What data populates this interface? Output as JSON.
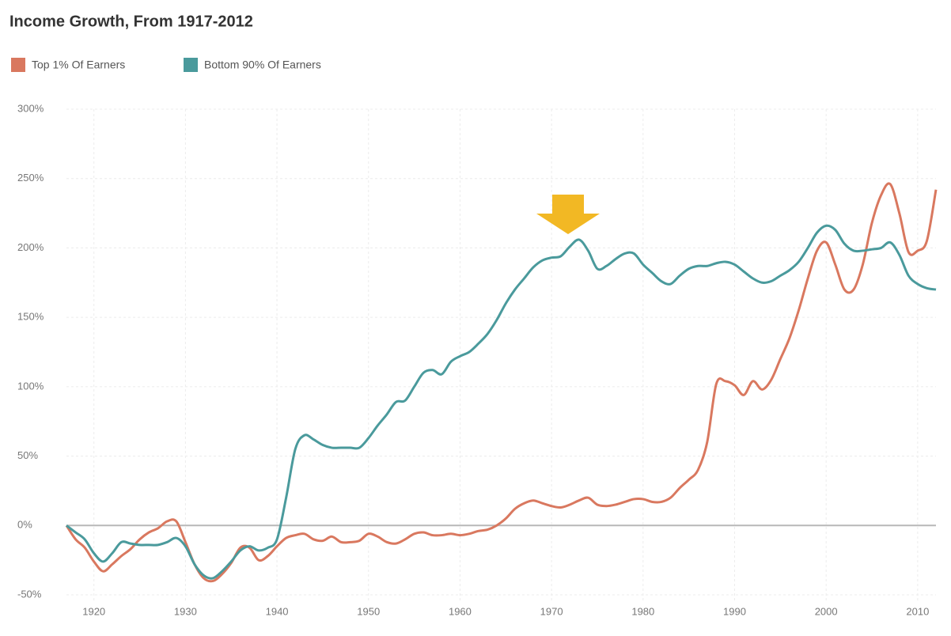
{
  "chart_data": {
    "type": "line",
    "title": "Income Growth, From 1917-2012",
    "x": [
      1917,
      1918,
      1919,
      1920,
      1921,
      1922,
      1923,
      1924,
      1925,
      1926,
      1927,
      1928,
      1929,
      1930,
      1931,
      1932,
      1933,
      1934,
      1935,
      1936,
      1937,
      1938,
      1939,
      1940,
      1941,
      1942,
      1943,
      1944,
      1945,
      1946,
      1947,
      1948,
      1949,
      1950,
      1951,
      1952,
      1953,
      1954,
      1955,
      1956,
      1957,
      1958,
      1959,
      1960,
      1961,
      1962,
      1963,
      1964,
      1965,
      1966,
      1967,
      1968,
      1969,
      1970,
      1971,
      1972,
      1973,
      1974,
      1975,
      1976,
      1977,
      1978,
      1979,
      1980,
      1981,
      1982,
      1983,
      1984,
      1985,
      1986,
      1987,
      1988,
      1989,
      1990,
      1991,
      1992,
      1993,
      1994,
      1995,
      1996,
      1997,
      1998,
      1999,
      2000,
      2001,
      2002,
      2003,
      2004,
      2005,
      2006,
      2007,
      2008,
      2009,
      2010,
      2011,
      2012
    ],
    "series": [
      {
        "name": "Top 1% Of Earners",
        "color": "#d9785f",
        "values": [
          0,
          -10,
          -16,
          -26,
          -33,
          -28,
          -22,
          -17,
          -10,
          -5,
          -2,
          3,
          3,
          -12,
          -28,
          -38,
          -40,
          -35,
          -27,
          -16,
          -16,
          -25,
          -22,
          -15,
          -9,
          -7,
          -6,
          -10,
          -11,
          -8,
          -12,
          -12,
          -11,
          -6,
          -8,
          -12,
          -13,
          -10,
          -6,
          -5,
          -7,
          -7,
          -6,
          -7,
          -6,
          -4,
          -3,
          0,
          5,
          12,
          16,
          18,
          16,
          14,
          13,
          15,
          18,
          20,
          15,
          14,
          15,
          17,
          19,
          19,
          17,
          17,
          20,
          27,
          33,
          40,
          60,
          102,
          104,
          101,
          94,
          104,
          98,
          105,
          120,
          135,
          155,
          178,
          198,
          204,
          188,
          170,
          170,
          188,
          218,
          238,
          246,
          225,
          197,
          198,
          205,
          242
        ]
      },
      {
        "name": "Bottom 90% Of Earners",
        "color": "#4a9a9c",
        "values": [
          0,
          -5,
          -10,
          -20,
          -26,
          -20,
          -12,
          -13,
          -14,
          -14,
          -14,
          -12,
          -9,
          -15,
          -28,
          -36,
          -38,
          -33,
          -26,
          -18,
          -15,
          -18,
          -16,
          -10,
          20,
          55,
          65,
          62,
          58,
          56,
          56,
          56,
          56,
          63,
          72,
          80,
          89,
          90,
          100,
          110,
          112,
          109,
          118,
          122,
          125,
          131,
          138,
          148,
          160,
          170,
          178,
          186,
          191,
          193,
          194,
          201,
          206,
          198,
          185,
          187,
          192,
          196,
          196,
          188,
          182,
          176,
          174,
          180,
          185,
          187,
          187,
          189,
          190,
          188,
          183,
          178,
          175,
          176,
          180,
          184,
          190,
          200,
          211,
          216,
          213,
          203,
          198,
          198,
          199,
          200,
          204,
          195,
          180,
          174,
          171,
          170
        ]
      }
    ],
    "xlim": [
      1917,
      2012
    ],
    "xticks": [
      1920,
      1930,
      1940,
      1950,
      1960,
      1970,
      1980,
      1990,
      2000,
      2010
    ],
    "ylim": [
      -50,
      300
    ],
    "yticks": [
      {
        "value": -50,
        "label": "-50%"
      },
      {
        "value": 0,
        "label": "0%"
      },
      {
        "value": 50,
        "label": "50%"
      },
      {
        "value": 100,
        "label": "100%"
      },
      {
        "value": 150,
        "label": "150%"
      },
      {
        "value": 200,
        "label": "200%"
      },
      {
        "value": 250,
        "label": "250%"
      },
      {
        "value": 300,
        "label": "300%"
      }
    ],
    "grid": true
  }
}
